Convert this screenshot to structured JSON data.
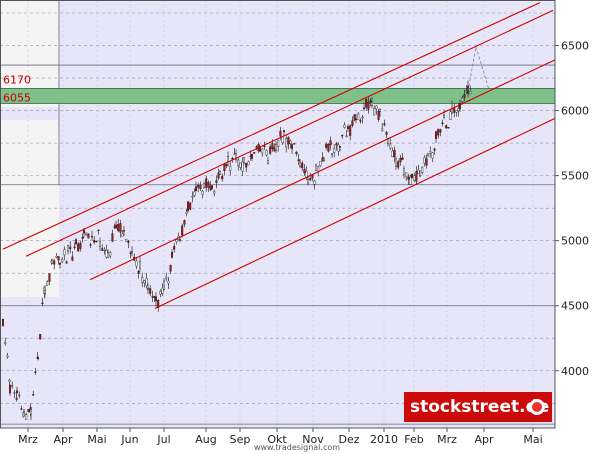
{
  "chart_data": {
    "type": "candlestick",
    "title": "",
    "xlabel": "",
    "ylabel": "",
    "ylim": [
      3560,
      6850
    ],
    "yticks": [
      4000,
      4500,
      5000,
      5500,
      6000,
      6500
    ],
    "x_labels": [
      "Mrz",
      "Apr",
      "Mai",
      "Jun",
      "Jul",
      "Aug",
      "Sep",
      "Okt",
      "Nov",
      "Dez",
      "2010",
      "Feb",
      "Mrz",
      "Apr",
      "Mai"
    ],
    "grid": true,
    "levels": [
      {
        "label": "6170",
        "value": 6170,
        "color": "#cc0000"
      },
      {
        "label": "6055",
        "value": 6055,
        "color": "#cc0000"
      }
    ],
    "zone": {
      "from": 6055,
      "to": 6170,
      "color": "#7fbf8a"
    },
    "reference_lines": [
      6350,
      5430,
      4500,
      3590
    ],
    "channels": [
      {
        "from": [
          "Feb",
          4935
        ],
        "to": [
          "Apr",
          6830
        ]
      },
      {
        "from": [
          "Feb",
          4880
        ],
        "to": [
          "Apr",
          6770
        ]
      },
      {
        "from": [
          "Apr",
          4700
        ],
        "to": [
          "Apr",
          6390
        ]
      },
      {
        "from": [
          "Jun",
          4480
        ],
        "to": [
          "Apr",
          5940
        ]
      }
    ],
    "projection": [
      [
        "Mrz",
        6150
      ],
      [
        "Mrz",
        6490
      ],
      [
        "Apr",
        6160
      ]
    ],
    "series": [
      {
        "values": [
          [
            3,
            4350
          ],
          [
            10,
            3900
          ],
          [
            17,
            3800
          ],
          [
            24,
            3650
          ],
          [
            31,
            3700
          ],
          [
            38,
            4100
          ],
          [
            45,
            4650
          ],
          [
            52,
            4800
          ],
          [
            60,
            4850
          ],
          [
            68,
            4900
          ],
          [
            76,
            4950
          ],
          [
            84,
            5050
          ],
          [
            92,
            4990
          ],
          [
            100,
            5000
          ],
          [
            108,
            4900
          ],
          [
            116,
            5130
          ],
          [
            124,
            5050
          ],
          [
            132,
            4900
          ],
          [
            140,
            4770
          ],
          [
            148,
            4650
          ],
          [
            156,
            4520
          ],
          [
            164,
            4630
          ],
          [
            172,
            4850
          ],
          [
            180,
            5040
          ],
          [
            188,
            5230
          ],
          [
            196,
            5360
          ],
          [
            204,
            5420
          ],
          [
            212,
            5380
          ],
          [
            220,
            5480
          ],
          [
            228,
            5600
          ],
          [
            236,
            5650
          ],
          [
            244,
            5570
          ],
          [
            252,
            5680
          ],
          [
            260,
            5720
          ],
          [
            268,
            5650
          ],
          [
            276,
            5700
          ],
          [
            284,
            5830
          ],
          [
            292,
            5730
          ],
          [
            300,
            5580
          ],
          [
            308,
            5460
          ],
          [
            316,
            5520
          ],
          [
            324,
            5660
          ],
          [
            332,
            5700
          ],
          [
            340,
            5780
          ],
          [
            348,
            5850
          ],
          [
            356,
            5920
          ],
          [
            364,
            6000
          ],
          [
            372,
            6030
          ],
          [
            380,
            5980
          ],
          [
            388,
            5790
          ],
          [
            396,
            5620
          ],
          [
            404,
            5560
          ],
          [
            412,
            5450
          ],
          [
            420,
            5500
          ],
          [
            428,
            5620
          ],
          [
            436,
            5780
          ],
          [
            444,
            5900
          ],
          [
            452,
            5980
          ],
          [
            460,
            6050
          ],
          [
            468,
            6130
          ],
          [
            472,
            6180
          ]
        ]
      }
    ]
  },
  "credit": "www.tradesignal.com",
  "logo": {
    "text": "stockstreet.de"
  }
}
